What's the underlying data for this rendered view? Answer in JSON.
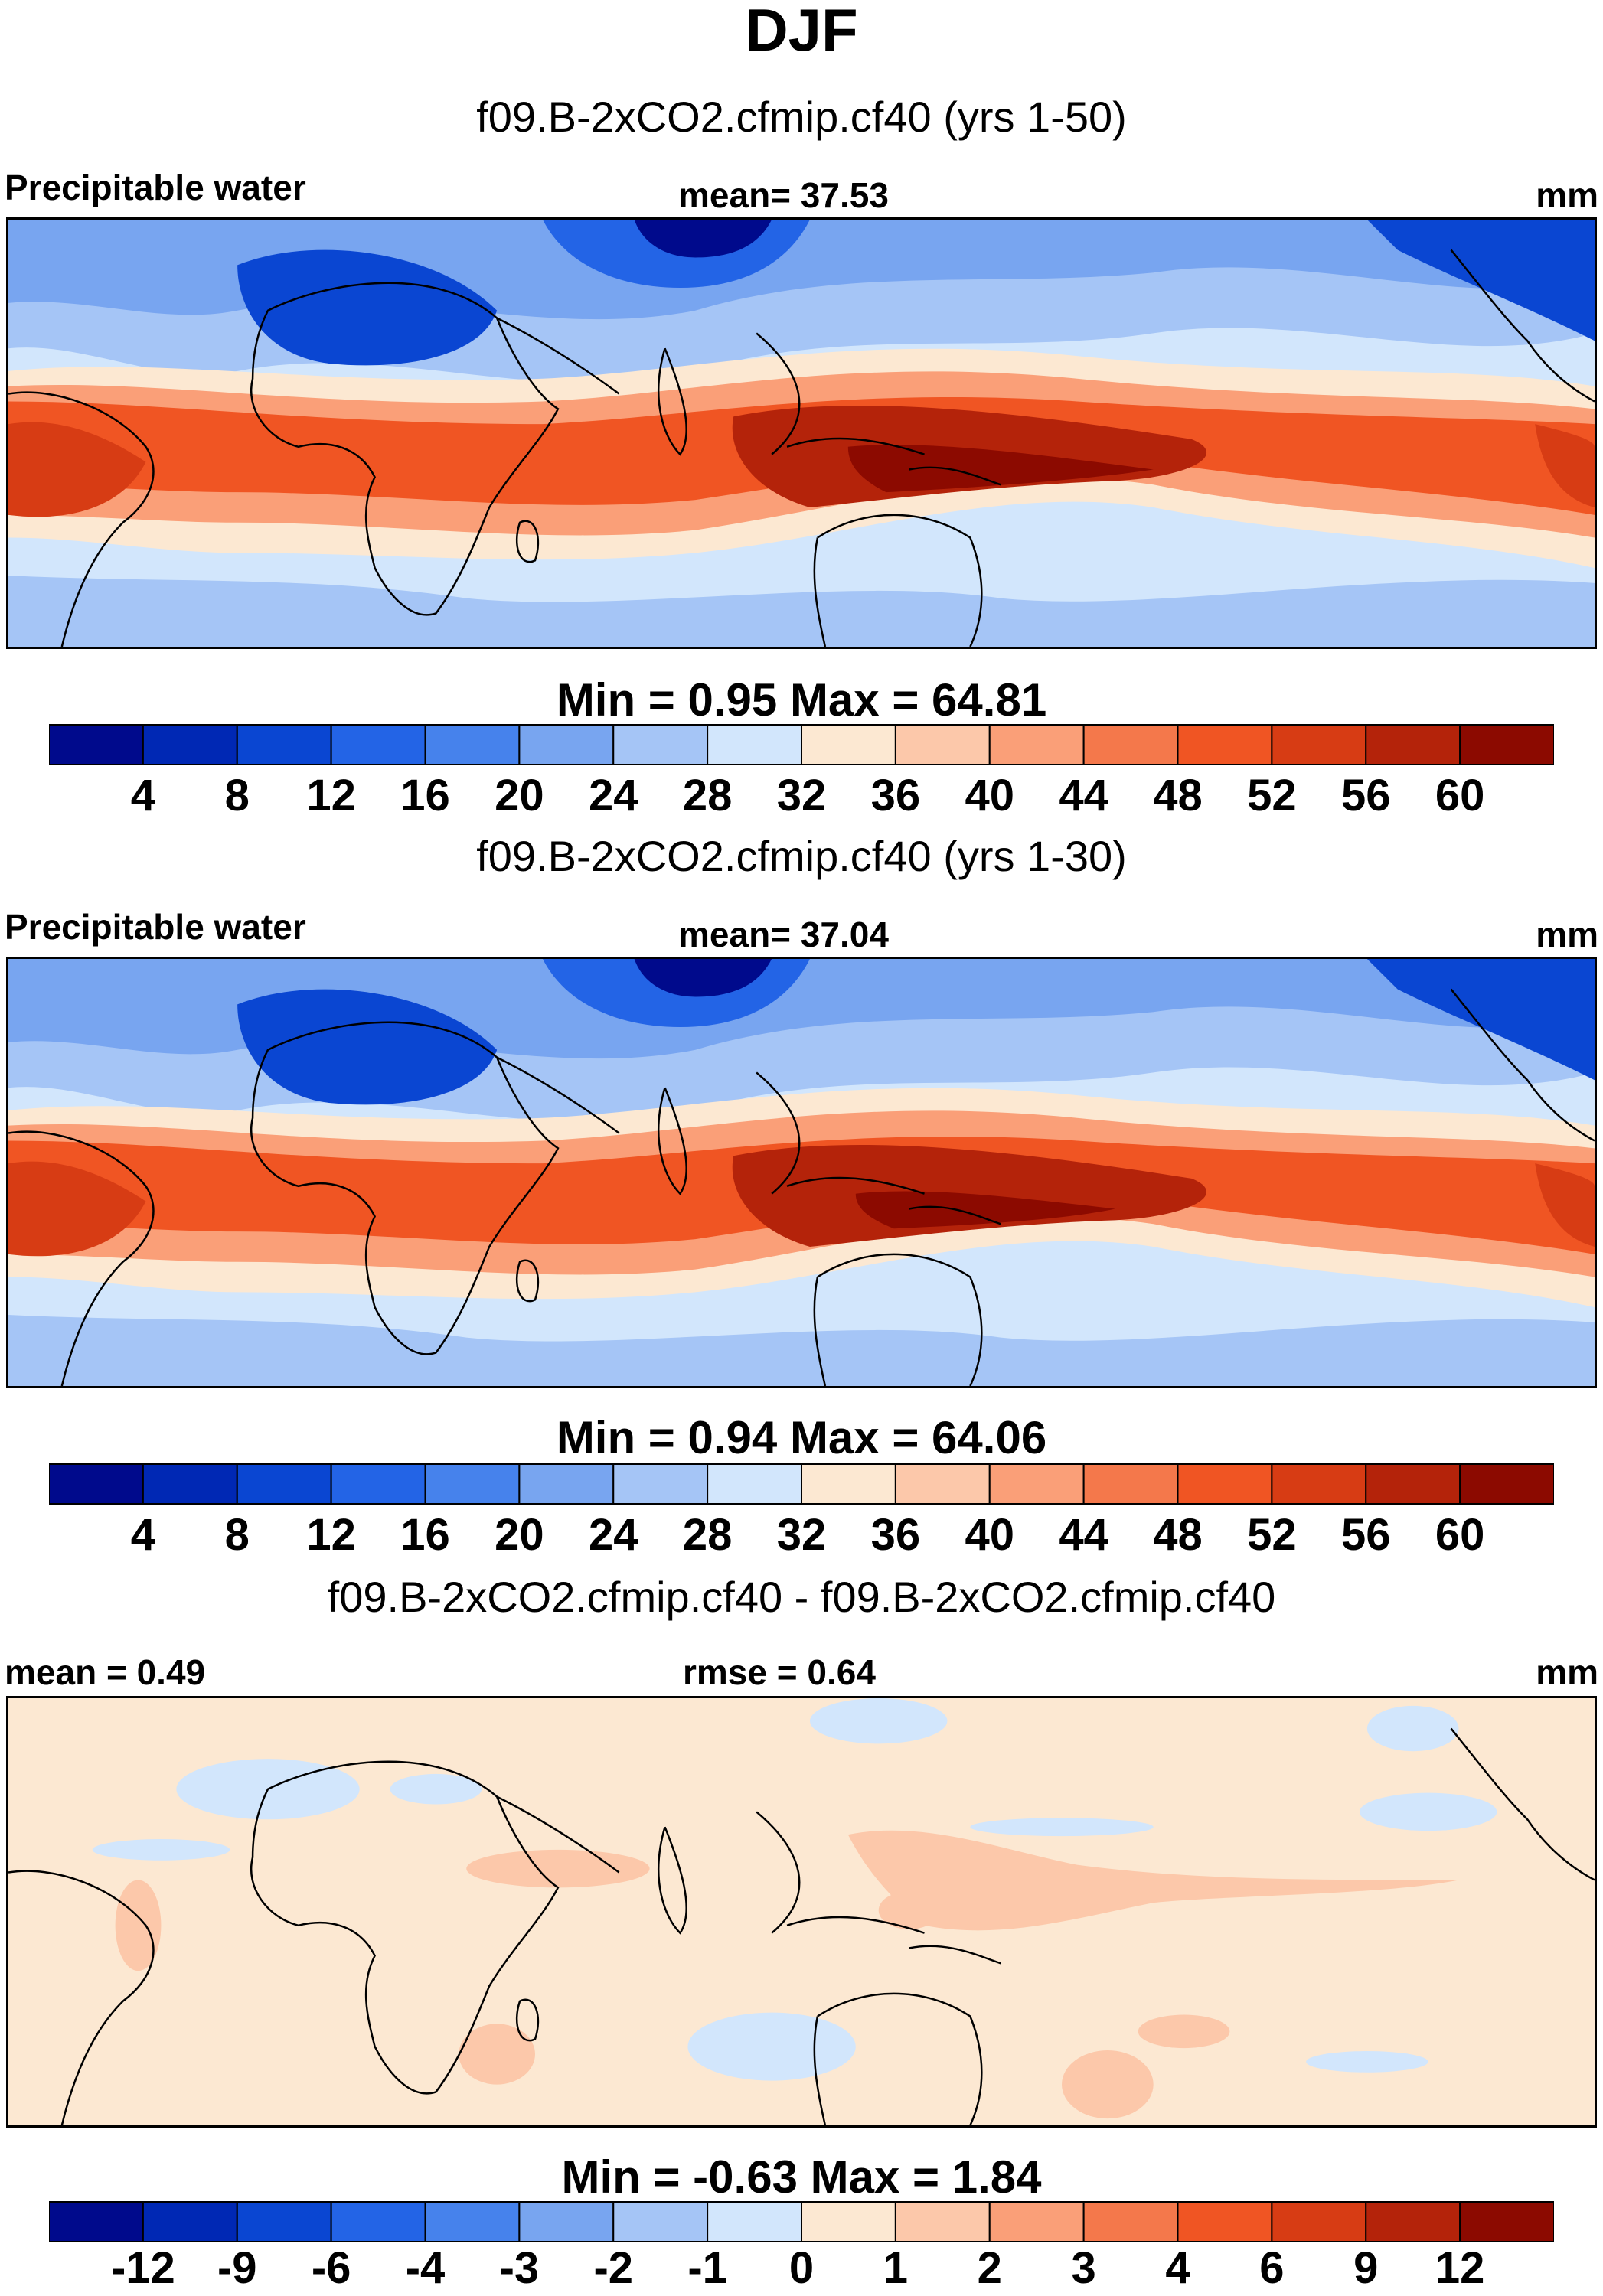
{
  "title": "DJF",
  "panels": [
    {
      "subtitle": "f09.B-2xCO2.cfmip.cf40 (yrs 1-50)",
      "left_label": "Precipitable water",
      "center_label": "mean=  37.53",
      "right_label": "mm",
      "minmax": "Min =   0.95 Max =  64.81",
      "colorbar_ticks": [
        "4",
        "8",
        "12",
        "16",
        "20",
        "24",
        "28",
        "32",
        "36",
        "40",
        "44",
        "48",
        "52",
        "56",
        "60"
      ]
    },
    {
      "subtitle": "f09.B-2xCO2.cfmip.cf40 (yrs 1-30)",
      "left_label": "Precipitable water",
      "center_label": "mean=  37.04",
      "right_label": "mm",
      "minmax": "Min =   0.94 Max =  64.06",
      "colorbar_ticks": [
        "4",
        "8",
        "12",
        "16",
        "20",
        "24",
        "28",
        "32",
        "36",
        "40",
        "44",
        "48",
        "52",
        "56",
        "60"
      ]
    },
    {
      "subtitle": "f09.B-2xCO2.cfmip.cf40 - f09.B-2xCO2.cfmip.cf40",
      "left_label": "mean =   0.49",
      "center_label": "rmse =   0.64",
      "right_label": "mm",
      "minmax": "Min =  -0.63 Max =   1.84",
      "colorbar_ticks": [
        "-12",
        "-9",
        "-6",
        "-4",
        "-3",
        "-2",
        "-1",
        "0",
        "1",
        "2",
        "3",
        "4",
        "6",
        "9",
        "12"
      ]
    }
  ],
  "colors": {
    "palette": [
      "#000a8c",
      "#0028b4",
      "#0a46d2",
      "#2364e6",
      "#4682ec",
      "#78a5f0",
      "#a5c5f6",
      "#d2e6fc",
      "#fce8d2",
      "#fcc8aa",
      "#fa9f78",
      "#f4784b",
      "#f05523",
      "#d73c14",
      "#b4230a",
      "#8c0a00"
    ],
    "land_outline": "#000000"
  }
}
